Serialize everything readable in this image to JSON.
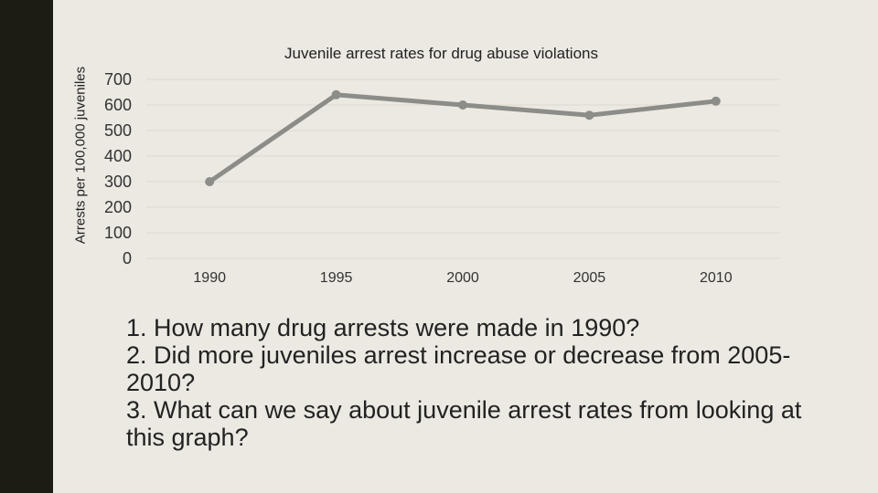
{
  "colors": {
    "background": "#ece9e2",
    "left_bar": "#1c1c12",
    "line": "#8c8c88",
    "grid": "#dcd9d0"
  },
  "chart_data": {
    "type": "line",
    "title": "Juvenile arrest rates for drug abuse violations",
    "ylabel": "Arrests per 100,000 juveniles",
    "xlabel": "",
    "categories": [
      "1990",
      "1995",
      "2000",
      "2005",
      "2010"
    ],
    "series": [
      {
        "values": [
          300,
          640,
          600,
          560,
          615
        ]
      }
    ],
    "ylim": [
      0,
      700
    ],
    "yticks": [
      0,
      100,
      200,
      300,
      400,
      500,
      600,
      700
    ],
    "grid": true,
    "legend": "none"
  },
  "questions": [
    "1. How many drug arrests were made in 1990?",
    "2. Did more juveniles arrest increase or decrease from 2005-2010?",
    "3. What can we say about juvenile arrest rates from looking at this graph?"
  ]
}
